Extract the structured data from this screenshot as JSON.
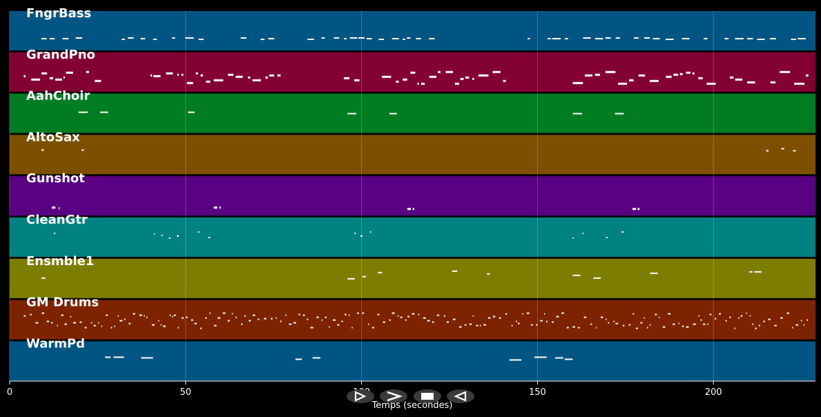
{
  "window": {
    "background": "#000000"
  },
  "axis": {
    "xlabel": "Temps (secondes)",
    "xlim": [
      0,
      229
    ],
    "ticks": [
      0,
      50,
      100,
      150,
      200
    ],
    "tick_labels": [
      "0",
      "50",
      "100",
      "150",
      "200"
    ],
    "grid": true
  },
  "tracks": [
    {
      "name": "FngrBass",
      "color": "#005582"
    },
    {
      "name": "GrandPno",
      "color": "#820032"
    },
    {
      "name": "AahChoir",
      "color": "#007d23"
    },
    {
      "name": "AltoSax",
      "color": "#7d5000"
    },
    {
      "name": "Gunshot",
      "color": "#5a0082"
    },
    {
      "name": "CleanGtr",
      "color": "#008282"
    },
    {
      "name": "Ensmble1",
      "color": "#7d7d00"
    },
    {
      "name": "GM Drums",
      "color": "#7d2300"
    },
    {
      "name": "WarmPd",
      "color": "#005582"
    }
  ],
  "controls": [
    {
      "name": "play-icon",
      "glyph": "play"
    },
    {
      "name": "fast-forward-icon",
      "glyph": "forward"
    },
    {
      "name": "stop-icon",
      "glyph": "stop"
    },
    {
      "name": "rewind-icon",
      "glyph": "back"
    }
  ]
}
